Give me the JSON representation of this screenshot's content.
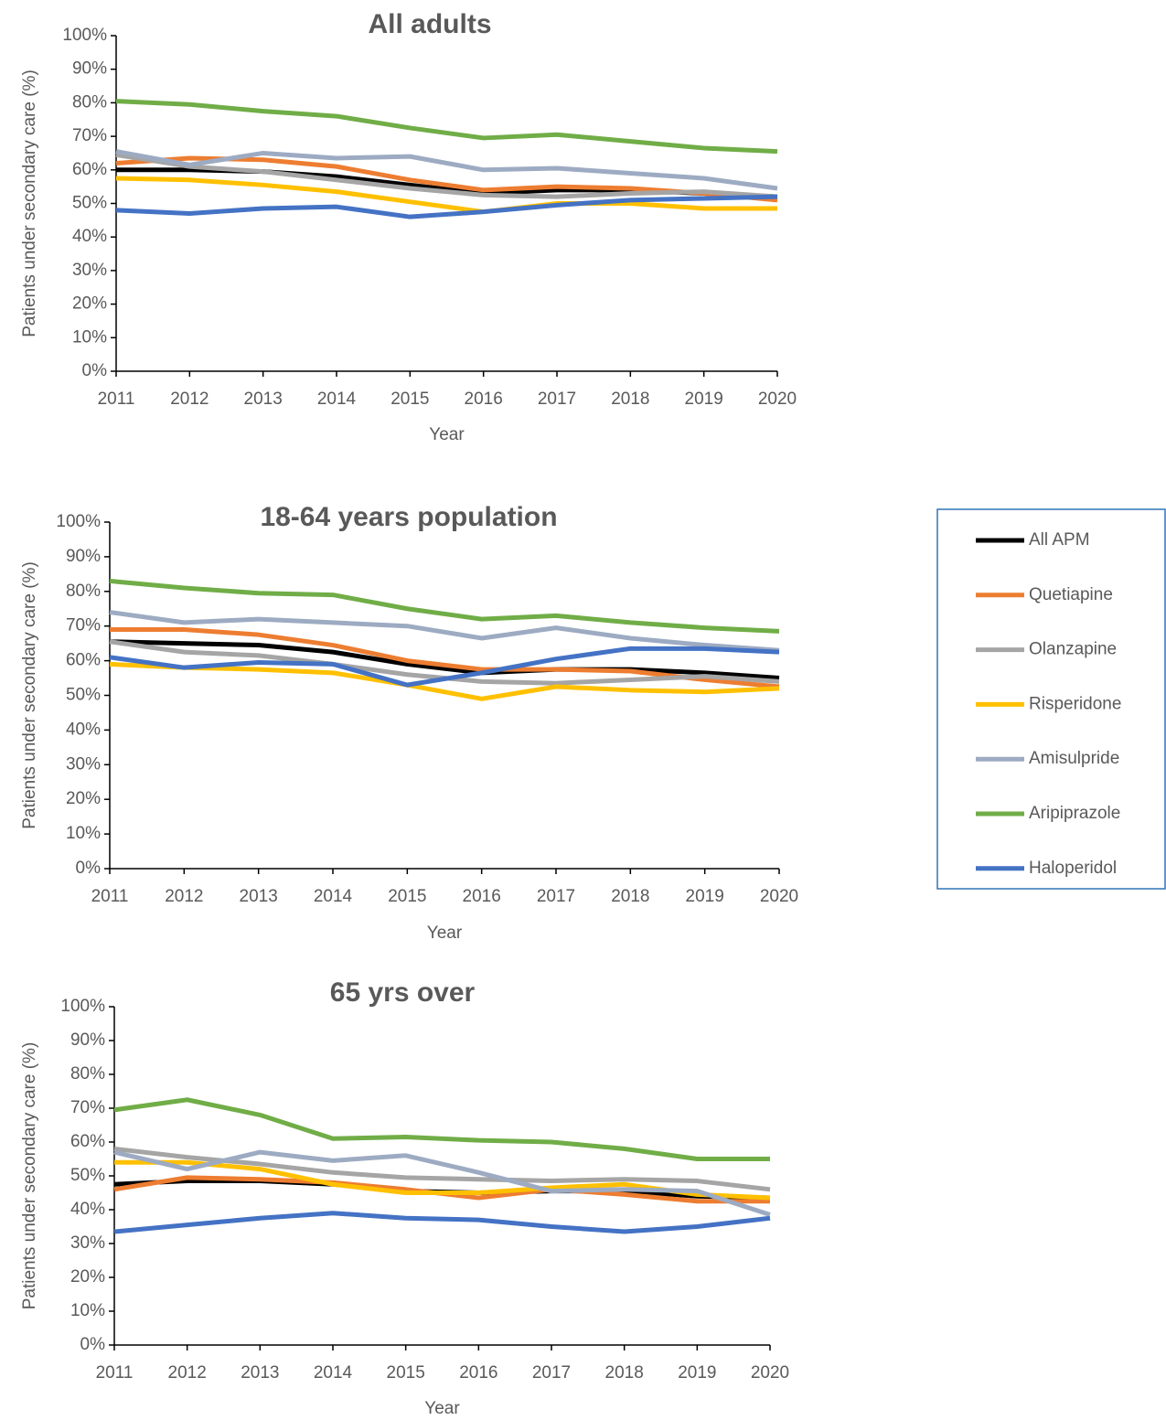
{
  "chart_data": [
    {
      "type": "line",
      "title": "All adults",
      "x_label": "Year",
      "y_label": "Patients under secondary care (%)",
      "categories": [
        "2011",
        "2012",
        "2013",
        "2014",
        "2015",
        "2016",
        "2017",
        "2018",
        "2019",
        "2020"
      ],
      "ylim": [
        0,
        100
      ],
      "yticks": [
        {
          "value": 0,
          "label": "0%"
        },
        {
          "value": 10,
          "label": "10%"
        },
        {
          "value": 20,
          "label": "20%"
        },
        {
          "value": 30,
          "label": "30%"
        },
        {
          "value": 40,
          "label": "40%"
        },
        {
          "value": 50,
          "label": "50%"
        },
        {
          "value": 60,
          "label": "60%"
        },
        {
          "value": 70,
          "label": "70%"
        },
        {
          "value": 80,
          "label": "80%"
        },
        {
          "value": 90,
          "label": "90%"
        },
        {
          "value": 100,
          "label": "100%"
        }
      ],
      "grid": false,
      "series": [
        {
          "name": "All APM",
          "color": "#000000",
          "values": [
            60,
            60,
            59.5,
            58,
            55.5,
            53,
            54,
            54,
            53,
            52
          ]
        },
        {
          "name": "Quetiapine",
          "color": "#ED7D31",
          "values": [
            62,
            63.5,
            63,
            61,
            57,
            54,
            55,
            54.5,
            53,
            51
          ]
        },
        {
          "name": "Olanzapine",
          "color": "#A5A5A5",
          "values": [
            64.5,
            61,
            59.5,
            57,
            54.5,
            52.5,
            52,
            53,
            53.5,
            52
          ]
        },
        {
          "name": "Risperidone",
          "color": "#FFC000",
          "values": [
            57.5,
            57,
            55.5,
            53.5,
            50.5,
            47.5,
            50,
            50,
            48.5,
            48.5
          ]
        },
        {
          "name": "Amisulpride",
          "color": "#9DABC2",
          "values": [
            65.5,
            61.5,
            65,
            63.5,
            64,
            60,
            60.5,
            59,
            57.5,
            54.5
          ]
        },
        {
          "name": "Aripiprazole",
          "color": "#70AD47",
          "values": [
            80.5,
            79.5,
            77.5,
            76,
            72.5,
            69.5,
            70.5,
            68.5,
            66.5,
            65.5
          ]
        },
        {
          "name": "Haloperidol",
          "color": "#4472C4",
          "values": [
            48,
            47,
            48.5,
            49,
            46,
            47.5,
            49.5,
            51,
            51.5,
            52
          ]
        }
      ]
    },
    {
      "type": "line",
      "title": "18-64 years population",
      "x_label": "Year",
      "y_label": "Patients under secondary care (%)",
      "categories": [
        "2011",
        "2012",
        "2013",
        "2014",
        "2015",
        "2016",
        "2017",
        "2018",
        "2019",
        "2020"
      ],
      "ylim": [
        0,
        100
      ],
      "yticks": [
        {
          "value": 0,
          "label": "0%"
        },
        {
          "value": 10,
          "label": "10%"
        },
        {
          "value": 20,
          "label": "20%"
        },
        {
          "value": 30,
          "label": "30%"
        },
        {
          "value": 40,
          "label": "40%"
        },
        {
          "value": 50,
          "label": "50%"
        },
        {
          "value": 60,
          "label": "60%"
        },
        {
          "value": 70,
          "label": "70%"
        },
        {
          "value": 80,
          "label": "80%"
        },
        {
          "value": 90,
          "label": "90%"
        },
        {
          "value": 100,
          "label": "100%"
        }
      ],
      "grid": false,
      "legend": "right",
      "series": [
        {
          "name": "All APM",
          "color": "#000000",
          "values": [
            65.5,
            65,
            64.5,
            62.5,
            59,
            56.5,
            57.5,
            57.5,
            56.5,
            55
          ]
        },
        {
          "name": "Quetiapine",
          "color": "#ED7D31",
          "values": [
            69,
            69,
            67.5,
            64.5,
            60,
            57.5,
            57.5,
            57,
            54.5,
            52.5
          ]
        },
        {
          "name": "Olanzapine",
          "color": "#A5A5A5",
          "values": [
            65.5,
            62.5,
            61.5,
            59,
            56,
            54,
            53.5,
            54.5,
            55.5,
            54
          ]
        },
        {
          "name": "Risperidone",
          "color": "#FFC000",
          "values": [
            59,
            58,
            57.5,
            56.5,
            53,
            49,
            52.5,
            51.5,
            51,
            52
          ]
        },
        {
          "name": "Amisulpride",
          "color": "#9DABC2",
          "values": [
            74,
            71,
            72,
            71,
            70,
            66.5,
            69.5,
            66.5,
            64.5,
            63
          ]
        },
        {
          "name": "Aripiprazole",
          "color": "#70AD47",
          "values": [
            83,
            81,
            79.5,
            79,
            75,
            72,
            73,
            71,
            69.5,
            68.5
          ]
        },
        {
          "name": "Haloperidol",
          "color": "#4472C4",
          "values": [
            61,
            58,
            59.5,
            59,
            53,
            56.5,
            60.5,
            63.5,
            63.5,
            62.5
          ]
        }
      ]
    },
    {
      "type": "line",
      "title": "65 yrs over",
      "x_label": "Year",
      "y_label": "Patients under secondary care (%)",
      "categories": [
        "2011",
        "2012",
        "2013",
        "2014",
        "2015",
        "2016",
        "2017",
        "2018",
        "2019",
        "2020"
      ],
      "ylim": [
        0,
        100
      ],
      "yticks": [
        {
          "value": 0,
          "label": "0%"
        },
        {
          "value": 10,
          "label": "10%"
        },
        {
          "value": 20,
          "label": "20%"
        },
        {
          "value": 30,
          "label": "30%"
        },
        {
          "value": 40,
          "label": "40%"
        },
        {
          "value": 50,
          "label": "50%"
        },
        {
          "value": 60,
          "label": "60%"
        },
        {
          "value": 70,
          "label": "70%"
        },
        {
          "value": 80,
          "label": "80%"
        },
        {
          "value": 90,
          "label": "90%"
        },
        {
          "value": 100,
          "label": "100%"
        }
      ],
      "grid": false,
      "series": [
        {
          "name": "All APM",
          "color": "#000000",
          "values": [
            47.5,
            48.5,
            48.5,
            47.5,
            45.5,
            45,
            45.5,
            45.5,
            44,
            43.5
          ]
        },
        {
          "name": "Quetiapine",
          "color": "#ED7D31",
          "values": [
            46,
            49.5,
            49,
            48,
            46,
            43.5,
            46,
            44.5,
            42.5,
            42.5
          ]
        },
        {
          "name": "Olanzapine",
          "color": "#A5A5A5",
          "values": [
            58,
            55.5,
            53.5,
            51,
            49.5,
            49,
            48.5,
            49,
            48.5,
            46
          ]
        },
        {
          "name": "Risperidone",
          "color": "#FFC000",
          "values": [
            54,
            54,
            52,
            47.5,
            45,
            45,
            46.5,
            47.5,
            44.5,
            43.5
          ]
        },
        {
          "name": "Amisulpride",
          "color": "#9DABC2",
          "values": [
            57,
            52,
            57,
            54.5,
            56,
            51,
            45.5,
            46,
            45.5,
            38.5
          ]
        },
        {
          "name": "Aripiprazole",
          "color": "#70AD47",
          "values": [
            69.5,
            72.5,
            68,
            61,
            61.5,
            60.5,
            60,
            58,
            55,
            55
          ]
        },
        {
          "name": "Haloperidol",
          "color": "#4472C4",
          "values": [
            33.5,
            35.5,
            37.5,
            39,
            37.5,
            37,
            35,
            33.5,
            35,
            37.5
          ]
        }
      ]
    }
  ]
}
